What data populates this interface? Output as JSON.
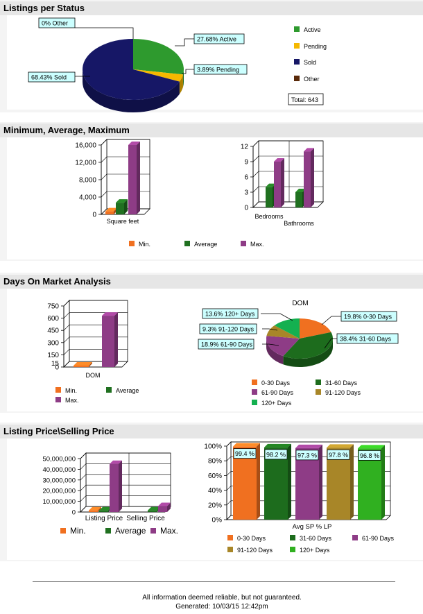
{
  "sections": {
    "status": "Listings per Status",
    "minavgmax": "Minimum, Average, Maximum",
    "dom": "Days On Market Analysis",
    "price": "Listing Price\\Selling Price"
  },
  "colors": {
    "active": "#2e9a2e",
    "pending": "#f5b800",
    "sold": "#161766",
    "other": "#5a2a0a",
    "min": "#f07020",
    "average": "#207020",
    "max": "#8e3c86",
    "d0_30": "#f07020",
    "d31_60": "#1d6c1d",
    "d61_90": "#8e3c86",
    "d91_120": "#a88628",
    "d120plus": "#14b050",
    "spLp120": "#30b020"
  },
  "chart_data": [
    {
      "type": "pie",
      "id": "status",
      "labels": [
        "Active",
        "Pending",
        "Sold",
        "Other"
      ],
      "values": [
        27.68,
        3.89,
        68.43,
        0
      ],
      "slice_labels": [
        "27.68%  Active",
        "3.89%  Pending",
        "68.43%  Sold",
        "0%  Other"
      ],
      "legend": [
        "Active",
        "Pending",
        "Sold",
        "Other"
      ],
      "total_label": "Total: 643"
    },
    {
      "type": "bar",
      "id": "sqft",
      "categories": [
        "Square feet"
      ],
      "series": [
        {
          "name": "Min.",
          "values": [
            700
          ]
        },
        {
          "name": "Average",
          "values": [
            2700
          ]
        },
        {
          "name": "Max.",
          "values": [
            16000
          ]
        }
      ],
      "ylim": [
        0,
        16000
      ],
      "yticks": [
        "0",
        "4,000",
        "8,000",
        "12,000",
        "16,000"
      ]
    },
    {
      "type": "bar",
      "id": "rooms",
      "categories": [
        "Bedrooms",
        "Bathrooms"
      ],
      "series": [
        {
          "name": "Min.",
          "values": [
            0,
            0
          ]
        },
        {
          "name": "Average",
          "values": [
            4,
            3
          ]
        },
        {
          "name": "Max.",
          "values": [
            9,
            11
          ]
        }
      ],
      "ylim": [
        0,
        12
      ],
      "yticks": [
        "0",
        "3",
        "6",
        "9",
        "12"
      ],
      "legend": [
        "Min.",
        "Average",
        "Max."
      ]
    },
    {
      "type": "bar",
      "id": "dom_bar",
      "categories": [
        "DOM"
      ],
      "series": [
        {
          "name": "Min.",
          "values": [
            0
          ]
        },
        {
          "name": "Average",
          "values": [
            0
          ]
        },
        {
          "name": "Max.",
          "values": [
            630
          ]
        }
      ],
      "ylim": [
        0,
        750
      ],
      "yticks": [
        "0",
        "150",
        "300",
        "450",
        "600",
        "750"
      ],
      "extra_ticks": [
        "15"
      ],
      "legend": [
        "Min.",
        "Average",
        "Max."
      ]
    },
    {
      "type": "pie",
      "id": "dom_pie",
      "title": "DOM",
      "labels": [
        "0-30 Days",
        "31-60 Days",
        "61-90 Days",
        "91-120 Days",
        "120+ Days"
      ],
      "values": [
        19.8,
        38.4,
        18.9,
        9.3,
        13.6
      ],
      "slice_labels": [
        "19.8%  0-30 Days",
        "38.4%  31-60 Days",
        "18.9%  61-90 Days",
        "9.3%  91-120 Days",
        "13.6%  120+ Days"
      ],
      "legend": [
        "0-30 Days",
        "31-60 Days",
        "61-90 Days",
        "91-120 Days",
        "120+ Days"
      ]
    },
    {
      "type": "bar",
      "id": "price_bar",
      "categories": [
        "Listing Price",
        "Selling Price"
      ],
      "series": [
        {
          "name": "Min.",
          "values": [
            1500000,
            0
          ]
        },
        {
          "name": "Average",
          "values": [
            1500000,
            1500000
          ]
        },
        {
          "name": "Max.",
          "values": [
            45000000,
            5500000
          ]
        }
      ],
      "ylim": [
        0,
        50000000
      ],
      "yticks": [
        "0",
        "10,000,000",
        "20,000,000",
        "30,000,000",
        "40,000,000",
        "50,000,000"
      ],
      "legend": [
        "Min.",
        "Average",
        "Max."
      ]
    },
    {
      "type": "bar",
      "id": "sp_lp",
      "xlabel": "Avg SP % LP",
      "categories": [
        "0-30 Days",
        "31-60 Days",
        "61-90 Days",
        "91-120 Days",
        "120+ Days"
      ],
      "values": [
        99.4,
        98.2,
        97.3,
        97.8,
        96.8
      ],
      "value_labels": [
        "99.4 %",
        "98.2 %",
        "97.3 %",
        "97.8 %",
        "96.8 %"
      ],
      "ylim": [
        0,
        100
      ],
      "yticks": [
        "0%",
        "20%",
        "40%",
        "60%",
        "80%",
        "100%"
      ],
      "legend": [
        "0-30 Days",
        "31-60 Days",
        "61-90 Days",
        "91-120 Days",
        "120+ Days"
      ]
    }
  ],
  "footer": {
    "disclaimer": "All information deemed reliable, but not guaranteed.",
    "generated": "Generated: 10/03/15 12:42pm"
  }
}
